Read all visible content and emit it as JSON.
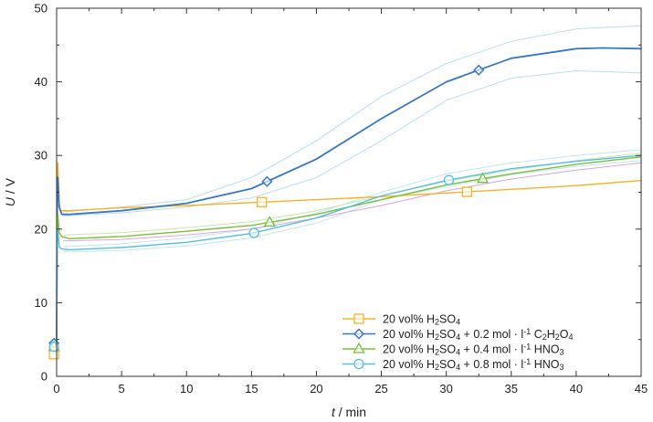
{
  "chart_data": {
    "type": "line",
    "xlabel": {
      "italic": "t",
      "rest": " / min"
    },
    "ylabel": {
      "italic": "U",
      "rest": " / V"
    },
    "xlim": [
      0,
      45
    ],
    "ylim": [
      0,
      50
    ],
    "x_ticks": [
      0,
      5,
      10,
      15,
      20,
      25,
      30,
      35,
      40,
      45
    ],
    "y_ticks": [
      0,
      10,
      20,
      30,
      40,
      50
    ],
    "grid": false,
    "legend_position": "bottom-right",
    "series": [
      {
        "name": "20 vol% H2SO4",
        "legend": [
          {
            "t": "20 vol% H"
          },
          {
            "t": "2",
            "sub": true
          },
          {
            "t": "SO"
          },
          {
            "t": "4",
            "sub": true
          }
        ],
        "color": "#f5b324",
        "marker": "square",
        "x": [
          0,
          0.05,
          0.1,
          0.2,
          0.3,
          1,
          5,
          10,
          15,
          20,
          25,
          30,
          35,
          40,
          45
        ],
        "y": [
          3,
          22,
          29,
          23.5,
          22.5,
          22.5,
          22.9,
          23.2,
          23.6,
          24.0,
          24.4,
          24.9,
          25.4,
          25.9,
          26.6
        ],
        "markers_x": [
          -0.2,
          15.8,
          31.6
        ]
      },
      {
        "name": "20 vol% H2SO4 + 0.2 mol · l-1 C2H2O4",
        "legend": [
          {
            "t": "20 vol% H"
          },
          {
            "t": "2",
            "sub": true
          },
          {
            "t": "SO"
          },
          {
            "t": "4",
            "sub": true
          },
          {
            "t": " + 0.2 mol · l"
          },
          {
            "t": "-1",
            "sup": true
          },
          {
            "t": " C"
          },
          {
            "t": "2",
            "sub": true
          },
          {
            "t": "H"
          },
          {
            "t": "2",
            "sub": true
          },
          {
            "t": "O"
          },
          {
            "t": "4",
            "sub": true
          }
        ],
        "color": "#3a78c3",
        "marker": "diamond",
        "x": [
          0,
          0.05,
          0.1,
          0.2,
          0.4,
          1,
          5,
          10,
          15,
          20,
          25,
          30,
          35,
          40,
          42,
          45
        ],
        "y": [
          4.5,
          26,
          27,
          23,
          22,
          22,
          22.5,
          23.5,
          25.5,
          29.5,
          35,
          40,
          43.2,
          44.5,
          44.6,
          44.5
        ],
        "markers_x": [
          -0.2,
          16.2,
          32.5
        ]
      },
      {
        "name": "20 vol% H2SO4 + 0.4 mol · l-1 HNO3",
        "legend": [
          {
            "t": "20 vol% H"
          },
          {
            "t": "2",
            "sub": true
          },
          {
            "t": "SO"
          },
          {
            "t": "4",
            "sub": true
          },
          {
            "t": " + 0.4 mol · l"
          },
          {
            "t": "-1",
            "sup": true
          },
          {
            "t": " HNO"
          },
          {
            "t": "3",
            "sub": true
          }
        ],
        "color": "#7cbf3a",
        "marker": "triangle",
        "x": [
          0,
          0.05,
          0.1,
          0.2,
          0.4,
          1,
          5,
          10,
          15,
          20,
          25,
          30,
          35,
          40,
          45
        ],
        "y": [
          4,
          20,
          22,
          19.5,
          19,
          18.7,
          19.0,
          19.7,
          20.5,
          22.0,
          24.0,
          26.0,
          27.5,
          28.8,
          29.8
        ],
        "markers_x": [
          -0.2,
          16.4,
          32.8
        ]
      },
      {
        "name": "20 vol% H2SO4 + 0.8 mol · l-1 HNO3",
        "legend": [
          {
            "t": "20 vol% H"
          },
          {
            "t": "2",
            "sub": true
          },
          {
            "t": "SO"
          },
          {
            "t": "4",
            "sub": true
          },
          {
            "t": " + 0.8 mol · l"
          },
          {
            "t": "-1",
            "sup": true
          },
          {
            "t": " HNO"
          },
          {
            "t": "3",
            "sub": true
          }
        ],
        "color": "#56bfe5",
        "marker": "circle",
        "x": [
          0,
          0.05,
          0.1,
          0.2,
          0.4,
          1,
          5,
          10,
          15,
          20,
          25,
          30,
          35,
          40,
          45
        ],
        "y": [
          4,
          18,
          20,
          17.6,
          17.3,
          17.2,
          17.5,
          18.2,
          19.4,
          21.5,
          24.5,
          26.6,
          28.2,
          29.2,
          30.0
        ],
        "markers_x": [
          -0.2,
          15.2,
          30.2
        ]
      }
    ],
    "bands": [
      {
        "color": "#b9def0",
        "x": [
          0.5,
          5,
          10,
          15,
          20,
          25,
          30,
          35,
          40,
          45
        ],
        "y": [
          22.3,
          23.0,
          24.0,
          27.0,
          32.0,
          38.0,
          42.5,
          45.5,
          47.2,
          47.6
        ]
      },
      {
        "color": "#b9def0",
        "x": [
          0.5,
          5,
          10,
          15,
          20,
          25,
          30,
          35,
          40,
          45
        ],
        "y": [
          21.8,
          22.2,
          23.0,
          24.2,
          27.0,
          32.0,
          37.5,
          40.5,
          41.5,
          41.2
        ]
      },
      {
        "color": "#bfe6f5",
        "x": [
          0.5,
          5,
          10,
          15,
          20,
          25,
          30,
          35,
          40,
          45
        ],
        "y": [
          17.6,
          18.0,
          18.8,
          20.0,
          22.2,
          25.0,
          27.5,
          29.0,
          30.0,
          30.8
        ]
      },
      {
        "color": "#bfe6f5",
        "x": [
          0.5,
          5,
          10,
          15,
          20,
          25,
          30,
          35,
          40,
          45
        ],
        "y": [
          16.9,
          17.1,
          17.7,
          18.8,
          20.8,
          24.0,
          25.8,
          27.4,
          28.5,
          29.3
        ]
      },
      {
        "color": "#c9e7a8",
        "x": [
          0.5,
          5,
          10,
          15,
          20,
          25,
          30,
          35,
          40,
          45
        ],
        "y": [
          19.2,
          19.5,
          20.2,
          21.0,
          22.5,
          24.5,
          26.5,
          28.0,
          29.3,
          30.3
        ]
      },
      {
        "color": "#d6a6dc",
        "x": [
          0.5,
          5,
          10,
          15,
          20,
          25,
          30,
          35,
          40,
          45
        ],
        "y": [
          18.4,
          18.6,
          19.2,
          20.0,
          21.5,
          23.2,
          25.2,
          26.8,
          28.0,
          29.0
        ]
      }
    ]
  }
}
